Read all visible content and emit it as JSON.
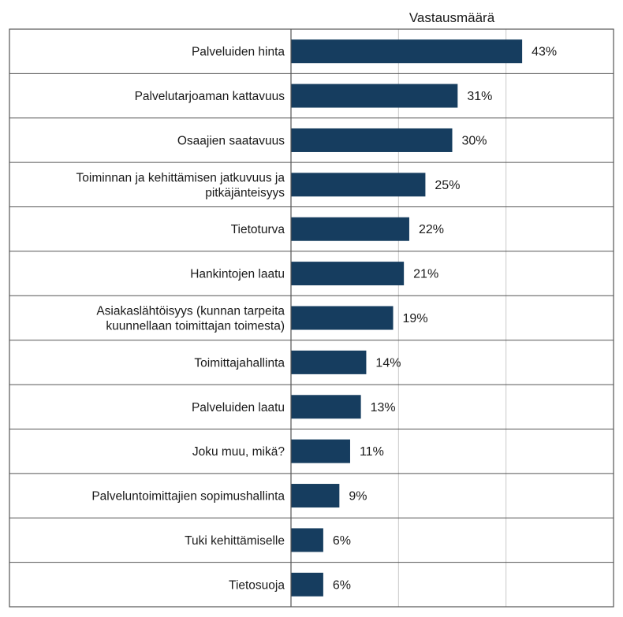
{
  "chart_data": {
    "type": "bar",
    "orientation": "horizontal",
    "title": "Vastausmäärä",
    "categories": [
      [
        "Palveluiden hinta"
      ],
      [
        "Palvelutarjoaman kattavuus"
      ],
      [
        "Osaajien saatavuus"
      ],
      [
        "Toiminnan ja kehittämisen jatkuvuus ja",
        "pitkäjänteisyys"
      ],
      [
        "Tietoturva"
      ],
      [
        "Hankintojen laatu"
      ],
      [
        "Asiakaslähtöisyys (kunnan tarpeita",
        "kuunnellaan toimittajan toimesta)"
      ],
      [
        "Toimittajahallinta"
      ],
      [
        "Palveluiden laatu"
      ],
      [
        "Joku muu, mikä?"
      ],
      [
        "Palveluntoimittajien sopimushallinta"
      ],
      [
        "Tuki kehittämiselle"
      ],
      [
        "Tietosuoja"
      ]
    ],
    "values": [
      43,
      31,
      30,
      25,
      22,
      21,
      19,
      14,
      13,
      11,
      9,
      6,
      6
    ],
    "value_labels": [
      "43%",
      "31%",
      "30%",
      "25%",
      "22%",
      "21%",
      "19%",
      "14%",
      "13%",
      "11%",
      "9%",
      "6%",
      "6%"
    ],
    "xlim": [
      0,
      60
    ],
    "grid": true,
    "bar_color": "#163d5f",
    "grid_color": "#c8c8c8"
  }
}
